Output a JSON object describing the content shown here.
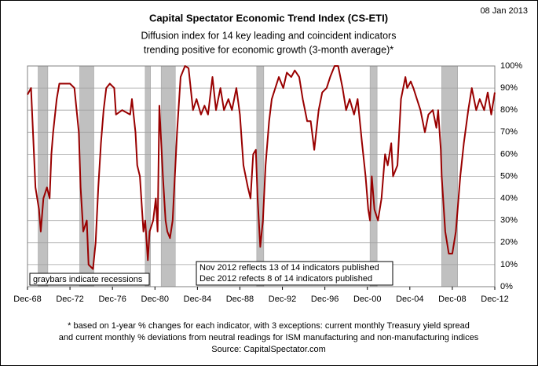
{
  "chart_data": {
    "type": "line",
    "title": "Capital Spectator Economic Trend Index (CS-ETI)",
    "subtitle": [
      "Diffusion index for 14 key leading and coincident indicators",
      "trending positive for economic growth (3-month average)*"
    ],
    "date": "08 Jan 2013",
    "notes": [
      "graybars indicate recessions",
      "Nov 2012 reflects 13 of 14 indicators published",
      "Dec 2012 refects 8 of 14 indicators published"
    ],
    "footnote": [
      "* based on 1-year % changes for each indicator, with 3 exceptions: current monthly Treasury yield spread",
      "and current monthly % deviations from neutral readings for ISM manufacturing and non-manufacturing indices",
      "Source:  CapitalSpectator.com"
    ],
    "x": [
      "1968-12",
      "1969-04",
      "1969-09",
      "1970-01",
      "1970-03",
      "1970-06",
      "1970-10",
      "1971-01",
      "1971-03",
      "1971-05",
      "1971-09",
      "1971-12",
      "1972-12",
      "1973-05",
      "1973-10",
      "1973-12",
      "1974-03",
      "1974-07",
      "1974-09",
      "1975-02",
      "1975-05",
      "1975-08",
      "1975-11",
      "1976-02",
      "1976-05",
      "1976-09",
      "1977-02",
      "1977-04",
      "1977-11",
      "1978-08",
      "1978-10",
      "1979-02",
      "1979-04",
      "1979-07",
      "1979-11",
      "1980-01",
      "1980-04",
      "1980-06",
      "1980-10",
      "1981-01",
      "1981-03",
      "1981-05",
      "1981-09",
      "1981-12",
      "1982-02",
      "1982-05",
      "1982-08",
      "1983-01",
      "1983-05",
      "1983-10",
      "1984-02",
      "1984-07",
      "1984-11",
      "1985-04",
      "1985-08",
      "1985-12",
      "1986-05",
      "1986-09",
      "1987-02",
      "1987-06",
      "1987-11",
      "1988-03",
      "1988-08",
      "1988-12",
      "1989-04",
      "1989-09",
      "1989-12",
      "1990-03",
      "1990-06",
      "1990-08",
      "1990-11",
      "1991-02",
      "1991-05",
      "1991-09",
      "1991-12",
      "1992-04",
      "1992-08",
      "1993-01",
      "1993-05",
      "1993-10",
      "1994-02",
      "1994-07",
      "1994-11",
      "1995-04",
      "1995-08",
      "1995-12",
      "1996-05",
      "1996-09",
      "1997-02",
      "1997-06",
      "1997-11",
      "1998-03",
      "1998-08",
      "1998-12",
      "1999-04",
      "1999-09",
      "2000-01",
      "2000-06",
      "2000-10",
      "2001-01",
      "2001-03",
      "2001-05",
      "2001-08",
      "2001-12",
      "2002-04",
      "2002-07",
      "2002-08",
      "2002-11",
      "2003-03",
      "2003-05",
      "2003-10",
      "2004-02",
      "2004-07",
      "2004-09",
      "2005-01",
      "2005-04",
      "2005-08",
      "2005-12",
      "2006-05",
      "2006-09",
      "2007-02",
      "2007-06",
      "2007-08",
      "2007-11",
      "2007-12",
      "2008-04",
      "2008-08",
      "2008-12",
      "2009-04",
      "2009-09",
      "2010-01",
      "2010-06",
      "2010-10",
      "2011-03",
      "2011-07",
      "2011-12",
      "2012-04",
      "2012-08",
      "2012-12"
    ],
    "series": [
      {
        "name": "CS-ETI",
        "color": "#990000",
        "values": [
          87,
          90,
          45,
          35,
          25,
          40,
          45,
          40,
          60,
          70,
          85,
          92,
          92,
          90,
          70,
          45,
          25,
          30,
          10,
          8,
          20,
          45,
          65,
          80,
          90,
          92,
          90,
          78,
          80,
          78,
          85,
          70,
          55,
          50,
          25,
          30,
          12,
          25,
          30,
          40,
          25,
          82,
          50,
          30,
          25,
          22,
          30,
          70,
          95,
          100,
          99,
          80,
          85,
          78,
          82,
          78,
          95,
          80,
          90,
          80,
          85,
          80,
          90,
          78,
          55,
          45,
          40,
          60,
          62,
          40,
          18,
          30,
          55,
          75,
          85,
          90,
          95,
          90,
          97,
          95,
          98,
          95,
          85,
          75,
          75,
          62,
          80,
          88,
          90,
          95,
          100,
          100,
          90,
          80,
          85,
          78,
          85,
          65,
          50,
          35,
          30,
          50,
          35,
          30,
          40,
          55,
          60,
          55,
          65,
          50,
          55,
          85,
          95,
          90,
          93,
          90,
          85,
          80,
          70,
          78,
          80,
          72,
          80,
          62,
          50,
          25,
          15,
          15,
          25,
          50,
          65,
          80,
          90,
          80,
          85,
          80,
          88,
          78,
          88
        ]
      }
    ],
    "recessions": [
      {
        "start": "1969-12",
        "end": "1970-11"
      },
      {
        "start": "1973-11",
        "end": "1975-03"
      },
      {
        "start": "1980-01",
        "end": "1980-07"
      },
      {
        "start": "1981-07",
        "end": "1982-11"
      },
      {
        "start": "1990-07",
        "end": "1991-03"
      },
      {
        "start": "2001-03",
        "end": "2001-11"
      },
      {
        "start": "2007-12",
        "end": "2009-06"
      }
    ],
    "recession_color": "#c0c0c0",
    "xlim": [
      "1968-12",
      "2012-12"
    ],
    "xticks": [
      {
        "value": "1968-12",
        "label": "Dec-68"
      },
      {
        "value": "1972-12",
        "label": "Dec-72"
      },
      {
        "value": "1976-12",
        "label": "Dec-76"
      },
      {
        "value": "1980-12",
        "label": "Dec-80"
      },
      {
        "value": "1984-12",
        "label": "Dec-84"
      },
      {
        "value": "1988-12",
        "label": "Dec-88"
      },
      {
        "value": "1992-12",
        "label": "Dec-92"
      },
      {
        "value": "1996-12",
        "label": "Dec-96"
      },
      {
        "value": "2000-12",
        "label": "Dec-00"
      },
      {
        "value": "2004-12",
        "label": "Dec-04"
      },
      {
        "value": "2008-12",
        "label": "Dec-08"
      },
      {
        "value": "2012-12",
        "label": "Dec-12"
      }
    ],
    "ylim": [
      0,
      100
    ],
    "yticks": [
      {
        "value": 0,
        "label": "0%"
      },
      {
        "value": 10,
        "label": "10%"
      },
      {
        "value": 20,
        "label": "20%"
      },
      {
        "value": 30,
        "label": "30%"
      },
      {
        "value": 40,
        "label": "40%"
      },
      {
        "value": 50,
        "label": "50%"
      },
      {
        "value": 60,
        "label": "60%"
      },
      {
        "value": 70,
        "label": "70%"
      },
      {
        "value": 80,
        "label": "80%"
      },
      {
        "value": 90,
        "label": "90%"
      },
      {
        "value": 100,
        "label": "100%"
      }
    ],
    "grid": true
  }
}
